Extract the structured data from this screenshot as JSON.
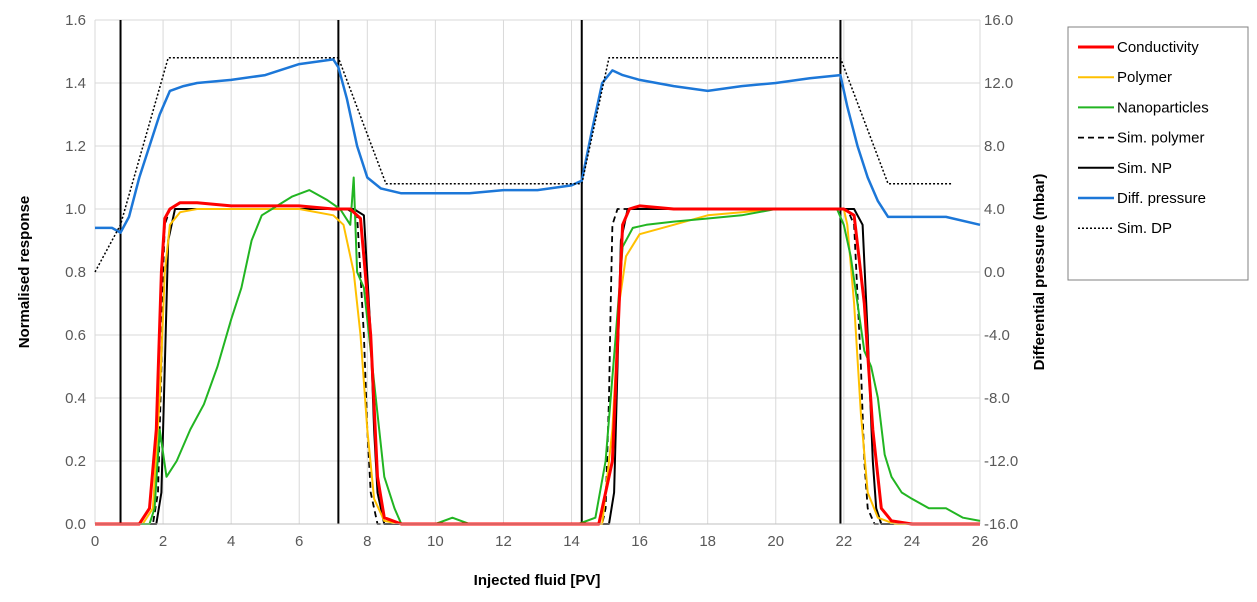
{
  "chart_data": {
    "type": "line",
    "title": "",
    "xlabel": "Injected fluid [PV]",
    "ylabel": "Normalised response",
    "y2label": "Differential pressure (mbar)",
    "xlim": [
      0,
      26
    ],
    "ylim": [
      0,
      1.6
    ],
    "y2lim": [
      -16,
      16
    ],
    "x_ticks": [
      "0",
      "2",
      "4",
      "6",
      "8",
      "10",
      "12",
      "14",
      "16",
      "18",
      "20",
      "22",
      "24",
      "26"
    ],
    "y_ticks": [
      "0.0",
      "0.2",
      "0.4",
      "0.6",
      "0.8",
      "1.0",
      "1.2",
      "1.4",
      "1.6"
    ],
    "y2_ticks": [
      "-16.0",
      "-12.0",
      "-8.0",
      "-4.0",
      "0.0",
      "4.0",
      "8.0",
      "12.0",
      "16.0"
    ],
    "grid": true,
    "legend_position": "right",
    "vertical_lines_x": [
      0.75,
      7.15,
      14.3,
      21.9
    ],
    "series": [
      {
        "name": "Conductivity",
        "axis": "left",
        "color": "#ff0000",
        "width": 3,
        "dash": "",
        "x": [
          0,
          1.3,
          1.6,
          1.8,
          1.95,
          2.05,
          2.2,
          2.5,
          3,
          4,
          5,
          6,
          7,
          7.5,
          7.8,
          8.1,
          8.3,
          8.5,
          9,
          14.2,
          14.8,
          15.2,
          15.4,
          15.5,
          15.7,
          16,
          17,
          18,
          19,
          20,
          21,
          22,
          22.3,
          22.6,
          22.85,
          23.1,
          23.4,
          24,
          26
        ],
        "y": [
          0,
          0,
          0.05,
          0.3,
          0.8,
          0.97,
          1.0,
          1.02,
          1.02,
          1.01,
          1.01,
          1.01,
          1.0,
          1.0,
          0.97,
          0.6,
          0.15,
          0.02,
          0,
          0,
          0,
          0.2,
          0.7,
          0.95,
          1.0,
          1.01,
          1.0,
          1.0,
          1.0,
          1.0,
          1.0,
          1.0,
          0.98,
          0.7,
          0.3,
          0.05,
          0.01,
          0,
          0
        ]
      },
      {
        "name": "Polymer",
        "axis": "left",
        "color": "#ffc000",
        "width": 2,
        "dash": "",
        "x": [
          0,
          1.4,
          1.7,
          1.9,
          2.05,
          2.2,
          2.5,
          3,
          4,
          5,
          6,
          7,
          7.3,
          7.6,
          7.8,
          8.0,
          8.2,
          8.5,
          9,
          14.3,
          14.9,
          15.2,
          15.4,
          15.6,
          16,
          17,
          18,
          19,
          20,
          21,
          22,
          22.1,
          22.3,
          22.5,
          22.7,
          23.0,
          23.5,
          24,
          26
        ],
        "y": [
          0,
          0,
          0.05,
          0.4,
          0.8,
          0.95,
          0.99,
          1.0,
          1.0,
          1.0,
          1.0,
          0.98,
          0.95,
          0.8,
          0.6,
          0.3,
          0.08,
          0.01,
          0,
          0,
          0,
          0.3,
          0.7,
          0.85,
          0.92,
          0.95,
          0.98,
          0.99,
          1.0,
          1.0,
          1.0,
          0.95,
          0.7,
          0.35,
          0.1,
          0.02,
          0,
          0,
          0
        ]
      },
      {
        "name": "Nanoparticles",
        "axis": "left",
        "color": "#22b522",
        "width": 2,
        "dash": "",
        "x": [
          0,
          1.6,
          1.75,
          1.9,
          2.1,
          2.4,
          2.8,
          3.2,
          3.6,
          4.0,
          4.3,
          4.6,
          4.9,
          5.2,
          5.8,
          6.3,
          6.8,
          7.2,
          7.5,
          7.6,
          7.7,
          7.9,
          8.1,
          8.3,
          8.5,
          8.8,
          9,
          10,
          10.5,
          11,
          14.2,
          14.7,
          15.0,
          15.3,
          15.5,
          15.8,
          16.2,
          17,
          18,
          19,
          20,
          21,
          21.8,
          22.0,
          22.2,
          22.4,
          22.6,
          22.8,
          23.0,
          23.2,
          23.4,
          23.7,
          24,
          24.5,
          25,
          25.5,
          26
        ],
        "y": [
          0,
          0,
          0.05,
          0.3,
          0.15,
          0.2,
          0.3,
          0.38,
          0.5,
          0.65,
          0.75,
          0.9,
          0.98,
          1.0,
          1.04,
          1.06,
          1.03,
          1.0,
          0.95,
          1.1,
          0.8,
          0.75,
          0.55,
          0.35,
          0.15,
          0.05,
          0,
          0,
          0.02,
          0,
          0,
          0.02,
          0.2,
          0.6,
          0.88,
          0.94,
          0.95,
          0.96,
          0.97,
          0.98,
          1.0,
          1.0,
          1.0,
          0.95,
          0.85,
          0.7,
          0.55,
          0.5,
          0.4,
          0.22,
          0.15,
          0.1,
          0.08,
          0.05,
          0.05,
          0.02,
          0.01
        ]
      },
      {
        "name": "Sim. polymer",
        "axis": "left",
        "color": "#000000",
        "width": 1.8,
        "dash": "6,4",
        "x": [
          0,
          1.7,
          1.85,
          1.95,
          2.0,
          2.05,
          2.2,
          7.4,
          7.7,
          7.9,
          8.0,
          8.1,
          8.3,
          14.9,
          15.0,
          15.1,
          15.15,
          15.2,
          15.35,
          22.1,
          22.3,
          22.5,
          22.6,
          22.7,
          22.9,
          26
        ],
        "y": [
          0,
          0,
          0.1,
          0.5,
          0.8,
          0.95,
          1.0,
          1.0,
          0.98,
          0.6,
          0.3,
          0.1,
          0,
          0,
          0.05,
          0.4,
          0.7,
          0.95,
          1.0,
          1.0,
          0.95,
          0.5,
          0.2,
          0.05,
          0,
          0
        ]
      },
      {
        "name": "Sim. NP",
        "axis": "left",
        "color": "#000000",
        "width": 2,
        "dash": "",
        "x": [
          0,
          1.8,
          1.95,
          2.05,
          2.15,
          2.35,
          7.6,
          7.9,
          8.1,
          8.2,
          8.3,
          8.5,
          15.1,
          15.25,
          15.35,
          15.45,
          15.65,
          22.3,
          22.55,
          22.7,
          22.85,
          22.95,
          23.1,
          26
        ],
        "y": [
          0,
          0,
          0.1,
          0.5,
          0.9,
          1.0,
          1.0,
          0.98,
          0.6,
          0.3,
          0.1,
          0,
          0,
          0.1,
          0.5,
          0.9,
          1.0,
          1.0,
          0.95,
          0.6,
          0.2,
          0.05,
          0,
          0
        ]
      },
      {
        "name": "Diff. pressure",
        "axis": "right",
        "color": "#1c77d8",
        "width": 2.5,
        "dash": "",
        "x": [
          0,
          0.5,
          0.75,
          1.0,
          1.3,
          1.6,
          1.9,
          2.2,
          2.6,
          3,
          4,
          5,
          6,
          7,
          7.15,
          7.4,
          7.7,
          8.0,
          8.4,
          9,
          10,
          11,
          12,
          13,
          14,
          14.3,
          14.6,
          14.9,
          15.2,
          15.5,
          16,
          17,
          18,
          19,
          20,
          21,
          21.9,
          22.1,
          22.4,
          22.7,
          23.0,
          23.3,
          24,
          25,
          26
        ],
        "y": [
          2.8,
          2.8,
          2.5,
          3.5,
          6,
          8,
          10,
          11.5,
          11.8,
          12,
          12.2,
          12.5,
          13.2,
          13.5,
          13,
          11,
          8,
          6,
          5.3,
          5,
          5,
          5,
          5.2,
          5.2,
          5.5,
          5.8,
          9,
          12,
          12.8,
          12.5,
          12.2,
          11.8,
          11.5,
          11.8,
          12,
          12.3,
          12.5,
          10.5,
          8,
          6,
          4.5,
          3.5,
          3.5,
          3.5,
          3.0
        ]
      },
      {
        "name": "Sim. DP",
        "axis": "right",
        "color": "#000000",
        "width": 1.5,
        "dash": "2,2",
        "x": [
          0,
          0.75,
          2.15,
          7.15,
          8.55,
          14.3,
          15.1,
          21.9,
          23.3,
          25.2
        ],
        "y": [
          0,
          3,
          13.6,
          13.6,
          5.6,
          5.6,
          13.6,
          13.6,
          5.6,
          5.6
        ]
      }
    ]
  }
}
